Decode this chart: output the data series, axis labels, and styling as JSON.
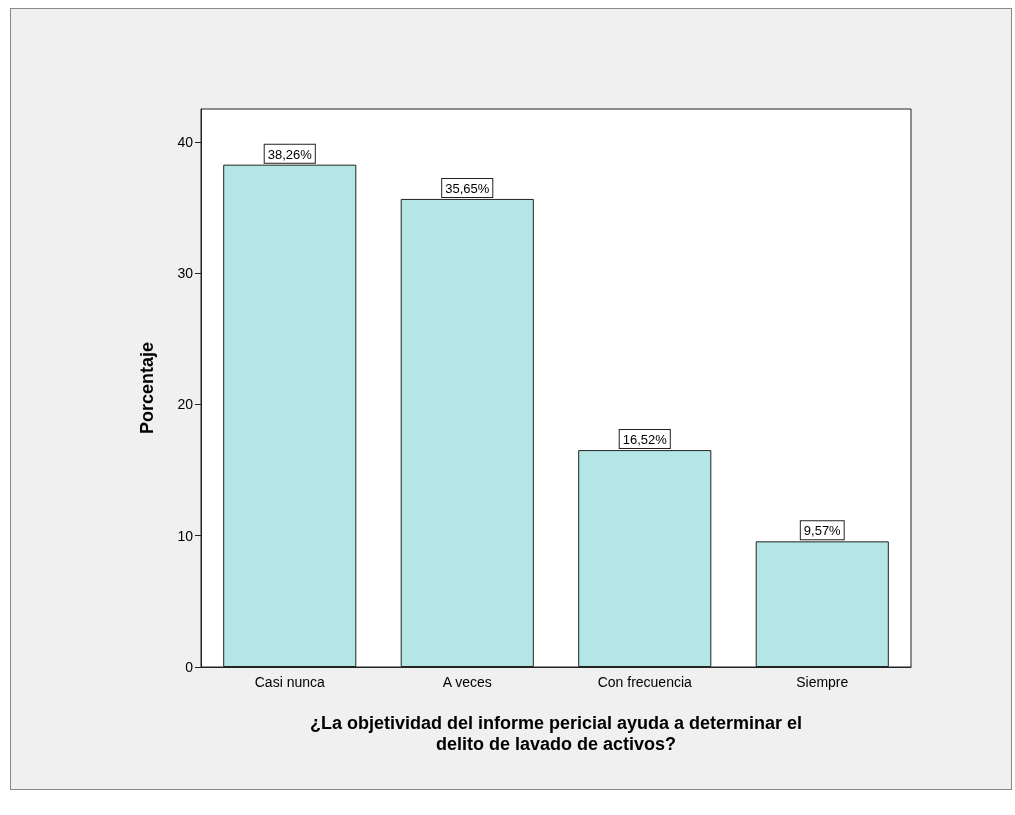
{
  "chart_data": {
    "type": "bar",
    "categories": [
      "Casi nunca",
      "A veces",
      "Con frecuencia",
      "Siempre"
    ],
    "values": [
      38.26,
      35.65,
      16.52,
      9.57
    ],
    "value_labels": [
      "38,26%",
      "35,65%",
      "16,52%",
      "9,57%"
    ],
    "color": "#b4e6e6",
    "xlabel": "¿La objetividad del informe pericial ayuda a determinar el\ndelito de lavado de activos?",
    "ylabel": "Porcentaje",
    "ylim": [
      0,
      42.5
    ],
    "yticks": [
      0,
      10,
      20,
      30,
      40
    ],
    "grid": false
  }
}
